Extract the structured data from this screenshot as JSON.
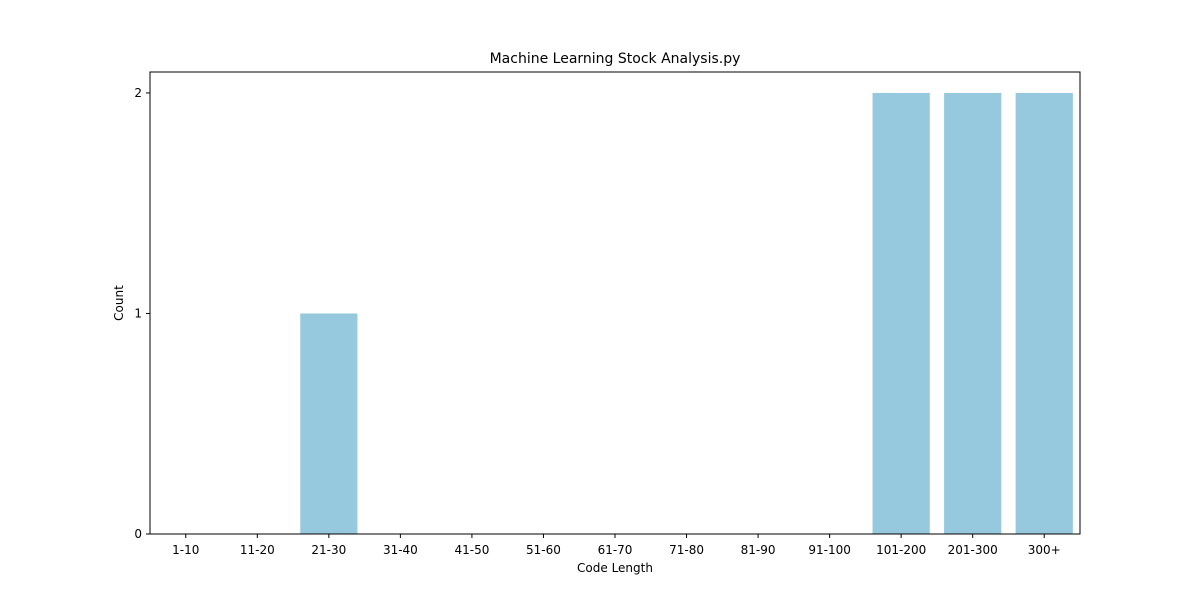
{
  "chart_data": {
    "type": "bar",
    "title": "Machine Learning Stock Analysis.py",
    "xlabel": "Code Length",
    "ylabel": "Count",
    "categories": [
      "1-10",
      "11-20",
      "21-30",
      "31-40",
      "41-50",
      "51-60",
      "61-70",
      "71-80",
      "81-90",
      "91-100",
      "101-200",
      "201-300",
      "300+"
    ],
    "values": [
      0,
      0,
      1,
      0,
      0,
      0,
      0,
      0,
      0,
      0,
      2,
      2,
      2
    ],
    "yticks": [
      0,
      1,
      2
    ],
    "ylim": [
      0,
      2.095
    ],
    "grid": false,
    "bar_color": "#96c9de"
  }
}
